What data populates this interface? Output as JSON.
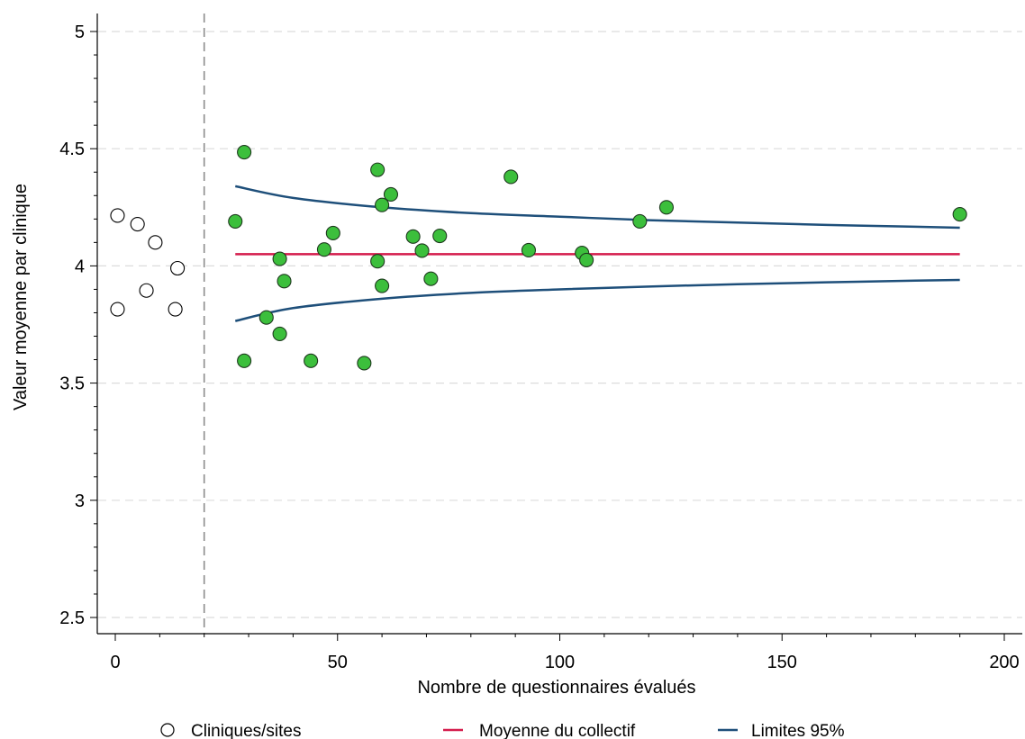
{
  "chart_data": {
    "type": "scatter",
    "xlabel": "Nombre de questionnaires évalués",
    "ylabel": "Valeur moyenne par clinique",
    "xlim": [
      0,
      200
    ],
    "ylim": [
      2.5,
      5
    ],
    "x_ticks": [
      0,
      50,
      100,
      150,
      200
    ],
    "y_ticks": [
      2.5,
      3,
      3.5,
      4,
      4.5,
      5
    ],
    "x_tick_labels": [
      "0",
      "50",
      "100",
      "150",
      "200"
    ],
    "y_tick_labels": [
      "2.5",
      "3",
      "3.5",
      "4",
      "4.5",
      "5"
    ],
    "grid": "horizontal dashed",
    "vertical_reference_x": 20,
    "legend_position": "bottom",
    "colors": {
      "points": "#3cbf3c",
      "mean": "#d41c4c",
      "limits": "#1e4f7a",
      "open_points": "#ffffff"
    },
    "open_points": [
      {
        "x": 0.5,
        "y": 4.215
      },
      {
        "x": 0.5,
        "y": 3.815
      },
      {
        "x": 5,
        "y": 4.178
      },
      {
        "x": 7,
        "y": 3.895
      },
      {
        "x": 9,
        "y": 4.1
      },
      {
        "x": 13.5,
        "y": 3.815
      },
      {
        "x": 14,
        "y": 3.99
      }
    ],
    "points": [
      {
        "x": 27,
        "y": 4.19
      },
      {
        "x": 29,
        "y": 4.485
      },
      {
        "x": 29,
        "y": 3.595
      },
      {
        "x": 34,
        "y": 3.78
      },
      {
        "x": 37,
        "y": 4.03
      },
      {
        "x": 37,
        "y": 3.71
      },
      {
        "x": 38,
        "y": 3.935
      },
      {
        "x": 44,
        "y": 3.595
      },
      {
        "x": 47,
        "y": 4.07
      },
      {
        "x": 49,
        "y": 4.14
      },
      {
        "x": 56,
        "y": 3.585
      },
      {
        "x": 59,
        "y": 4.41
      },
      {
        "x": 59,
        "y": 4.02
      },
      {
        "x": 60,
        "y": 4.26
      },
      {
        "x": 60,
        "y": 3.915
      },
      {
        "x": 62,
        "y": 4.305
      },
      {
        "x": 67,
        "y": 4.125
      },
      {
        "x": 69,
        "y": 4.065
      },
      {
        "x": 71,
        "y": 3.945
      },
      {
        "x": 73,
        "y": 4.128
      },
      {
        "x": 89,
        "y": 4.38
      },
      {
        "x": 93,
        "y": 4.067
      },
      {
        "x": 105,
        "y": 4.055
      },
      {
        "x": 106,
        "y": 4.025
      },
      {
        "x": 118,
        "y": 4.19
      },
      {
        "x": 124,
        "y": 4.25
      },
      {
        "x": 190,
        "y": 4.22
      }
    ],
    "mean_line": {
      "y": 4.05,
      "x_range": [
        27,
        190
      ]
    },
    "upper_limit": [
      {
        "x": 27,
        "y": 4.34
      },
      {
        "x": 40,
        "y": 4.29
      },
      {
        "x": 60,
        "y": 4.25
      },
      {
        "x": 80,
        "y": 4.225
      },
      {
        "x": 100,
        "y": 4.21
      },
      {
        "x": 120,
        "y": 4.195
      },
      {
        "x": 140,
        "y": 4.185
      },
      {
        "x": 160,
        "y": 4.175
      },
      {
        "x": 180,
        "y": 4.167
      },
      {
        "x": 190,
        "y": 4.163
      }
    ],
    "lower_limit": [
      {
        "x": 27,
        "y": 3.765
      },
      {
        "x": 40,
        "y": 3.82
      },
      {
        "x": 60,
        "y": 3.86
      },
      {
        "x": 80,
        "y": 3.885
      },
      {
        "x": 100,
        "y": 3.9
      },
      {
        "x": 120,
        "y": 3.912
      },
      {
        "x": 140,
        "y": 3.922
      },
      {
        "x": 160,
        "y": 3.93
      },
      {
        "x": 180,
        "y": 3.937
      },
      {
        "x": 190,
        "y": 3.94
      }
    ],
    "legend": [
      {
        "label": "Cliniques/sites",
        "symbol": "open-circle"
      },
      {
        "label": "Moyenne du collectif",
        "symbol": "red-line"
      },
      {
        "label": "Limites 95%",
        "symbol": "blue-line"
      }
    ]
  }
}
